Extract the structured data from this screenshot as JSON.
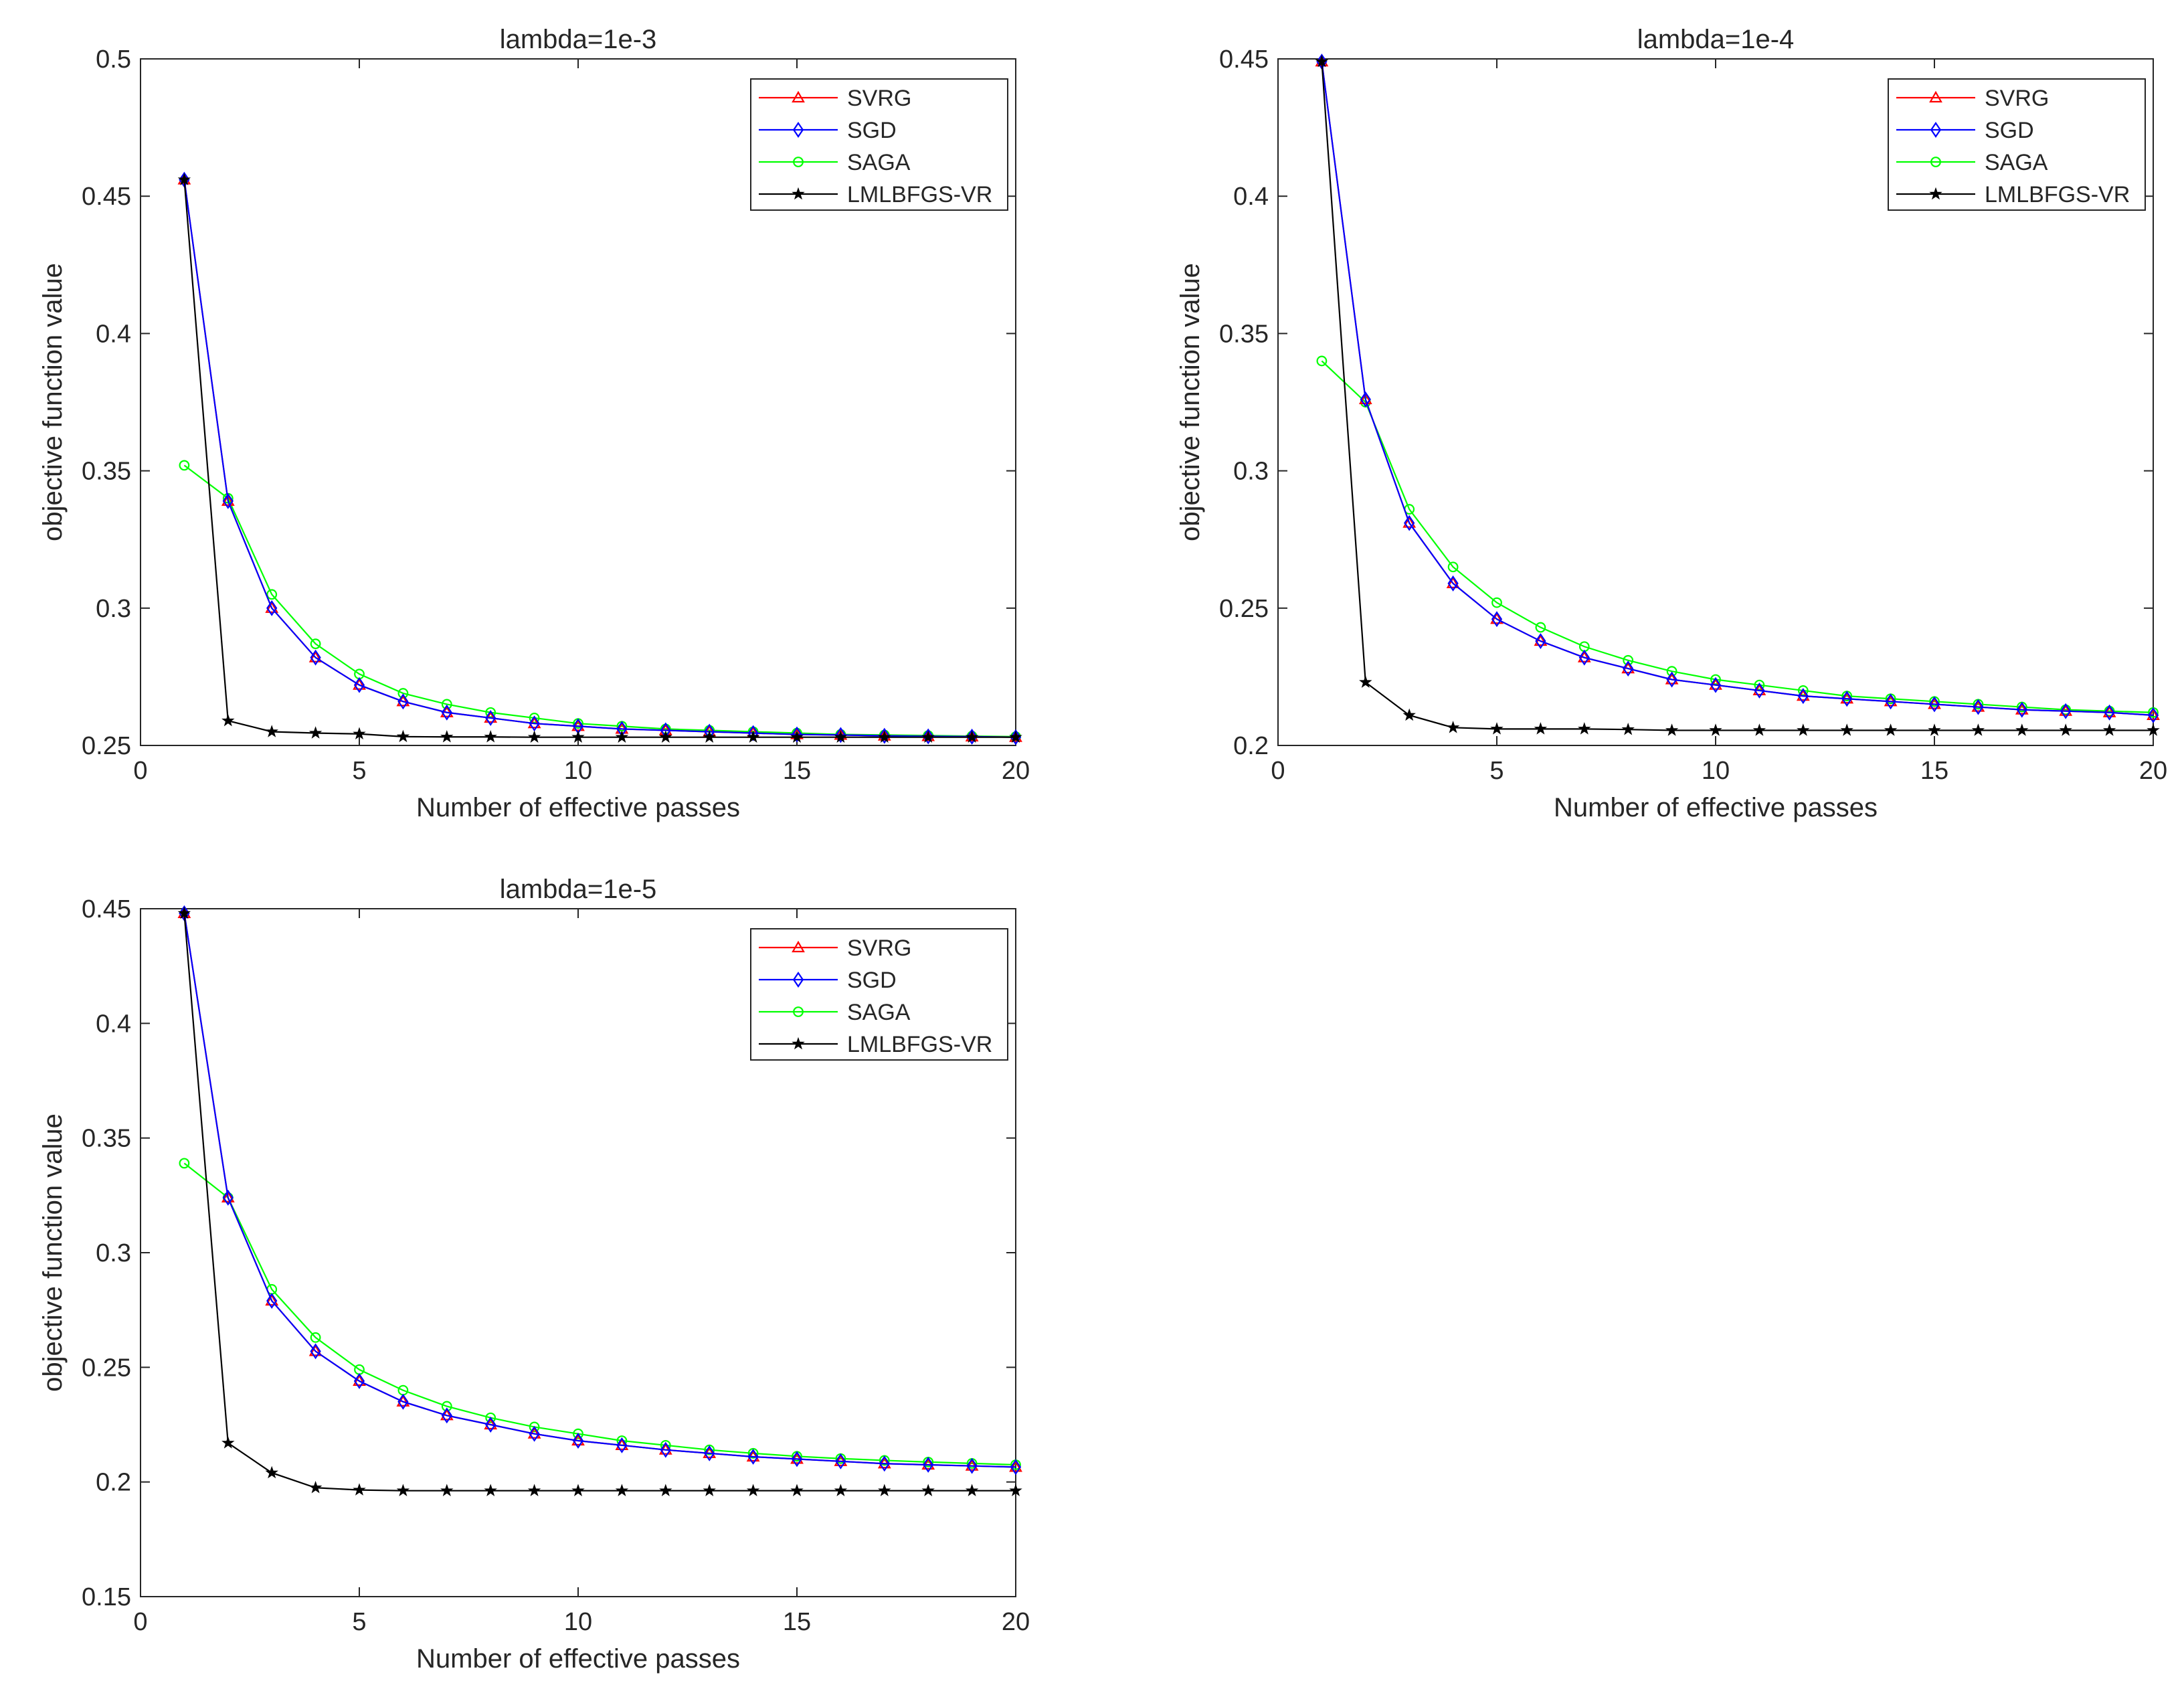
{
  "chart_data": [
    {
      "type": "line",
      "title": "lambda=1e-3",
      "xlabel": "Number of effective passes",
      "ylabel": "objective function value",
      "xlim": [
        0,
        20
      ],
      "ylim": [
        0.25,
        0.5
      ],
      "xticks": [
        0,
        5,
        10,
        15,
        20
      ],
      "yticks": [
        0.25,
        0.3,
        0.35,
        0.4,
        0.45,
        0.5
      ],
      "xtick_labels": [
        "0",
        "5",
        "10",
        "15",
        "20"
      ],
      "ytick_labels": [
        "0.25",
        "0.3",
        "0.35",
        "0.4",
        "0.45",
        "0.5"
      ],
      "grid": false,
      "legend_position": "top-right",
      "x": [
        1,
        2,
        3,
        4,
        5,
        6,
        7,
        8,
        9,
        10,
        11,
        12,
        13,
        14,
        15,
        16,
        17,
        18,
        19,
        20
      ],
      "series": [
        {
          "name": "SVRG",
          "color": "#ff0000",
          "marker": "triangle",
          "values": [
            0.456,
            0.339,
            0.3,
            0.282,
            0.272,
            0.266,
            0.262,
            0.26,
            0.258,
            0.257,
            0.256,
            0.2555,
            0.255,
            0.2545,
            0.254,
            0.2538,
            0.2535,
            0.2533,
            0.2532,
            0.253
          ]
        },
        {
          "name": "SGD",
          "color": "#0000ff",
          "marker": "diamond",
          "values": [
            0.456,
            0.339,
            0.3,
            0.282,
            0.272,
            0.266,
            0.262,
            0.26,
            0.258,
            0.257,
            0.256,
            0.2555,
            0.255,
            0.2545,
            0.254,
            0.2538,
            0.2535,
            0.2533,
            0.2532,
            0.253
          ]
        },
        {
          "name": "SAGA",
          "color": "#00ff00",
          "marker": "circle",
          "values": [
            0.352,
            0.34,
            0.305,
            0.287,
            0.276,
            0.269,
            0.265,
            0.262,
            0.26,
            0.258,
            0.257,
            0.256,
            0.2555,
            0.255,
            0.2545,
            0.254,
            0.2538,
            0.2536,
            0.2534,
            0.2532
          ]
        },
        {
          "name": "LMLBFGS-VR",
          "color": "#000000",
          "marker": "star",
          "values": [
            0.456,
            0.259,
            0.255,
            0.2545,
            0.2542,
            0.2532,
            0.2531,
            0.2531,
            0.253,
            0.253,
            0.253,
            0.253,
            0.253,
            0.253,
            0.253,
            0.253,
            0.253,
            0.253,
            0.253,
            0.253
          ]
        }
      ]
    },
    {
      "type": "line",
      "title": "lambda=1e-4",
      "xlabel": "Number of effective passes",
      "ylabel": "objective function value",
      "xlim": [
        0,
        20
      ],
      "ylim": [
        0.2,
        0.45
      ],
      "xticks": [
        0,
        5,
        10,
        15,
        20
      ],
      "yticks": [
        0.2,
        0.25,
        0.3,
        0.35,
        0.4,
        0.45
      ],
      "xtick_labels": [
        "0",
        "5",
        "10",
        "15",
        "20"
      ],
      "ytick_labels": [
        "0.2",
        "0.25",
        "0.3",
        "0.35",
        "0.4",
        "0.45"
      ],
      "grid": false,
      "legend_position": "top-right",
      "x": [
        1,
        2,
        3,
        4,
        5,
        6,
        7,
        8,
        9,
        10,
        11,
        12,
        13,
        14,
        15,
        16,
        17,
        18,
        19,
        20
      ],
      "series": [
        {
          "name": "SVRG",
          "color": "#ff0000",
          "marker": "triangle",
          "values": [
            0.449,
            0.326,
            0.281,
            0.259,
            0.246,
            0.238,
            0.232,
            0.228,
            0.224,
            0.222,
            0.22,
            0.218,
            0.217,
            0.216,
            0.215,
            0.214,
            0.213,
            0.2125,
            0.212,
            0.211
          ]
        },
        {
          "name": "SGD",
          "color": "#0000ff",
          "marker": "diamond",
          "values": [
            0.449,
            0.326,
            0.281,
            0.259,
            0.246,
            0.238,
            0.232,
            0.228,
            0.224,
            0.222,
            0.22,
            0.218,
            0.217,
            0.216,
            0.215,
            0.214,
            0.213,
            0.2125,
            0.212,
            0.211
          ]
        },
        {
          "name": "SAGA",
          "color": "#00ff00",
          "marker": "circle",
          "values": [
            0.34,
            0.325,
            0.286,
            0.265,
            0.252,
            0.243,
            0.236,
            0.231,
            0.227,
            0.224,
            0.222,
            0.22,
            0.218,
            0.217,
            0.216,
            0.215,
            0.214,
            0.213,
            0.2125,
            0.212
          ]
        },
        {
          "name": "LMLBFGS-VR",
          "color": "#000000",
          "marker": "star",
          "values": [
            0.449,
            0.223,
            0.211,
            0.2065,
            0.206,
            0.206,
            0.206,
            0.2058,
            0.2055,
            0.2055,
            0.2055,
            0.2055,
            0.2055,
            0.2055,
            0.2055,
            0.2055,
            0.2055,
            0.2055,
            0.2055,
            0.2055
          ]
        }
      ]
    },
    {
      "type": "line",
      "title": "lambda=1e-5",
      "xlabel": "Number of effective passes",
      "ylabel": "objective function value",
      "xlim": [
        0,
        20
      ],
      "ylim": [
        0.15,
        0.45
      ],
      "xticks": [
        0,
        5,
        10,
        15,
        20
      ],
      "yticks": [
        0.15,
        0.2,
        0.25,
        0.3,
        0.35,
        0.4,
        0.45
      ],
      "xtick_labels": [
        "0",
        "5",
        "10",
        "15",
        "20"
      ],
      "ytick_labels": [
        "0.15",
        "0.2",
        "0.25",
        "0.3",
        "0.35",
        "0.4",
        "0.45"
      ],
      "grid": false,
      "legend_position": "top-right",
      "x": [
        1,
        2,
        3,
        4,
        5,
        6,
        7,
        8,
        9,
        10,
        11,
        12,
        13,
        14,
        15,
        16,
        17,
        18,
        19,
        20
      ],
      "series": [
        {
          "name": "SVRG",
          "color": "#ff0000",
          "marker": "triangle",
          "values": [
            0.448,
            0.324,
            0.279,
            0.257,
            0.244,
            0.235,
            0.229,
            0.225,
            0.221,
            0.218,
            0.216,
            0.214,
            0.2125,
            0.211,
            0.21,
            0.209,
            0.208,
            0.2075,
            0.207,
            0.2065
          ]
        },
        {
          "name": "SGD",
          "color": "#0000ff",
          "marker": "diamond",
          "values": [
            0.448,
            0.324,
            0.279,
            0.257,
            0.244,
            0.235,
            0.229,
            0.225,
            0.221,
            0.218,
            0.216,
            0.214,
            0.2125,
            0.211,
            0.21,
            0.209,
            0.208,
            0.2075,
            0.207,
            0.2065
          ]
        },
        {
          "name": "SAGA",
          "color": "#00ff00",
          "marker": "circle",
          "values": [
            0.339,
            0.324,
            0.284,
            0.263,
            0.249,
            0.24,
            0.233,
            0.228,
            0.224,
            0.221,
            0.218,
            0.216,
            0.214,
            0.2125,
            0.2112,
            0.2102,
            0.2094,
            0.2087,
            0.2081,
            0.2075
          ]
        },
        {
          "name": "LMLBFGS-VR",
          "color": "#000000",
          "marker": "star",
          "values": [
            0.448,
            0.217,
            0.204,
            0.1975,
            0.1965,
            0.1962,
            0.1962,
            0.1962,
            0.1962,
            0.1962,
            0.1962,
            0.1962,
            0.1962,
            0.1962,
            0.1962,
            0.1962,
            0.1962,
            0.1962,
            0.1962,
            0.1962
          ]
        }
      ]
    }
  ]
}
